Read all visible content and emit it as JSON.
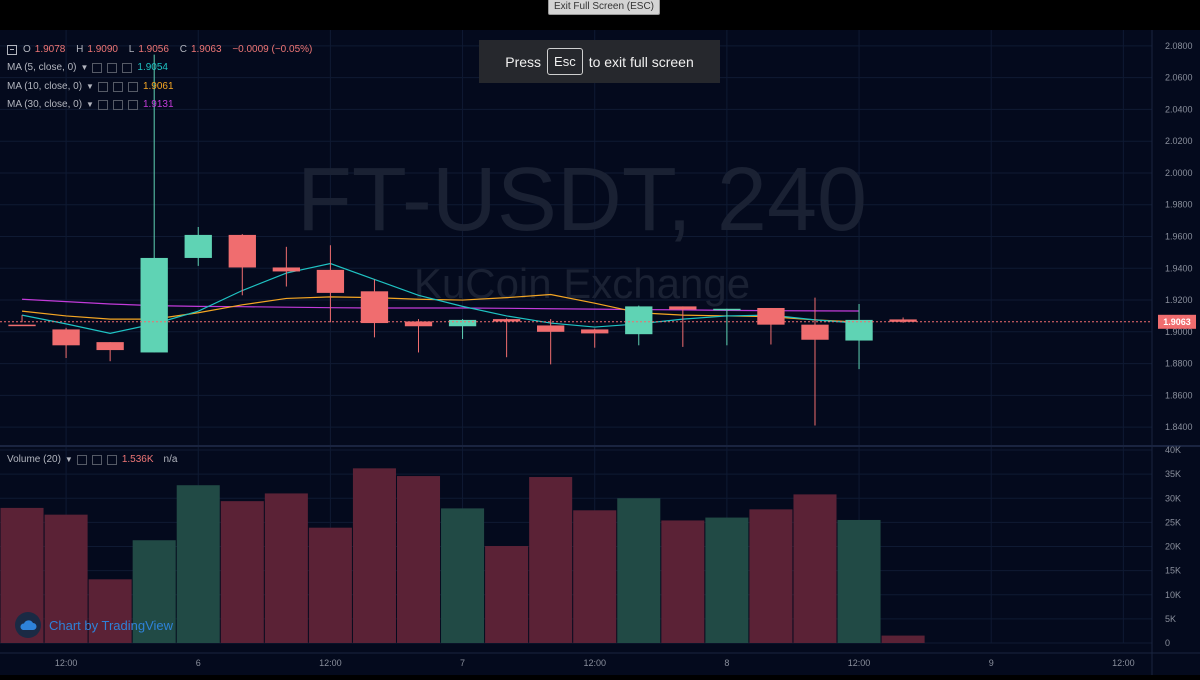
{
  "window": {
    "exit_fullscreen_label": "Exit Full Screen (ESC)"
  },
  "toast": {
    "press": "Press",
    "key": "Esc",
    "rest": "to exit full screen"
  },
  "chart": {
    "watermark_symbol": "FT-USDT, 240",
    "watermark_exchange": "KuCoin Exchange",
    "ohlc": {
      "o_label": "O",
      "o": "1.9078",
      "h_label": "H",
      "h": "1.9090",
      "l_label": "L",
      "l": "1.9056",
      "c_label": "C",
      "c": "1.9063",
      "change": "−0.0009 (−0.05%)"
    },
    "ma": [
      {
        "label": "MA (5, close, 0)",
        "value": "1.9054",
        "color": "#1fc3c3"
      },
      {
        "label": "MA (10, close, 0)",
        "value": "1.9061",
        "color": "#f5a623"
      },
      {
        "label": "MA (30, close, 0)",
        "value": "1.9131",
        "color": "#c23bd9"
      }
    ],
    "volume_label": "Volume (20)",
    "volume_value": "1.536K",
    "volume_ma_value": "n/a",
    "current_price_label": "1.9063",
    "brand": "Chart by TradingView",
    "colors": {
      "bg": "#040a1d",
      "up": "#5fd3b4",
      "down": "#f06d6f",
      "vol_up": "#214a45",
      "vol_down": "#5b2236",
      "grid": "#0f1a33",
      "axis_text": "#8a8f9c"
    }
  },
  "chart_data": {
    "type": "candlestick",
    "title": "FT-USDT, 240",
    "price_axis": {
      "ylim": [
        1.83,
        2.09
      ],
      "ticks": [
        "2.0800",
        "2.0600",
        "2.0400",
        "2.0200",
        "2.0000",
        "1.9800",
        "1.9600",
        "1.9400",
        "1.9200",
        "1.9000",
        "1.8800",
        "1.8600",
        "1.8400"
      ]
    },
    "volume_axis": {
      "ylim": [
        0,
        40000
      ],
      "ticks": [
        "40K",
        "35K",
        "30K",
        "25K",
        "20K",
        "15K",
        "10K",
        "5K",
        "0"
      ],
      "tick_values": [
        40000,
        35000,
        30000,
        25000,
        20000,
        15000,
        10000,
        5000,
        0
      ]
    },
    "time_axis": {
      "labels": [
        {
          "text": "12:00",
          "at": 1.5
        },
        {
          "text": "6",
          "at": 4.5
        },
        {
          "text": "12:00",
          "at": 7.5
        },
        {
          "text": "7",
          "at": 10.5
        },
        {
          "text": "12:00",
          "at": 13.5
        },
        {
          "text": "8",
          "at": 16.5
        },
        {
          "text": "12:00",
          "at": 19.5
        },
        {
          "text": "9",
          "at": 22.5
        },
        {
          "text": "12:00",
          "at": 25.5
        }
      ]
    },
    "visible_bars": 26.15,
    "candles": [
      {
        "o": 1.9045,
        "h": 1.9105,
        "l": 1.906,
        "c": 1.9045,
        "dir": "down",
        "vol": 28000
      },
      {
        "o": 1.9015,
        "h": 1.9025,
        "l": 1.8835,
        "c": 1.8915,
        "dir": "down",
        "vol": 26600
      },
      {
        "o": 1.8935,
        "h": 1.8935,
        "l": 1.8815,
        "c": 1.8885,
        "dir": "down",
        "vol": 13200
      },
      {
        "o": 1.887,
        "h": 2.0745,
        "l": 1.887,
        "c": 1.9465,
        "dir": "up",
        "vol": 21300
      },
      {
        "o": 1.9465,
        "h": 1.966,
        "l": 1.9415,
        "c": 1.961,
        "dir": "up",
        "vol": 32700
      },
      {
        "o": 1.961,
        "h": 1.9615,
        "l": 1.923,
        "c": 1.9405,
        "dir": "down",
        "vol": 29400
      },
      {
        "o": 1.9405,
        "h": 1.9535,
        "l": 1.9285,
        "c": 1.938,
        "dir": "down",
        "vol": 31000
      },
      {
        "o": 1.939,
        "h": 1.9545,
        "l": 1.906,
        "c": 1.9245,
        "dir": "down",
        "vol": 23900
      },
      {
        "o": 1.9255,
        "h": 1.933,
        "l": 1.8965,
        "c": 1.9055,
        "dir": "down",
        "vol": 36200
      },
      {
        "o": 1.9065,
        "h": 1.908,
        "l": 1.887,
        "c": 1.9035,
        "dir": "down",
        "vol": 34600
      },
      {
        "o": 1.9035,
        "h": 1.908,
        "l": 1.8955,
        "c": 1.9075,
        "dir": "up",
        "vol": 27900
      },
      {
        "o": 1.908,
        "h": 1.9085,
        "l": 1.884,
        "c": 1.9065,
        "dir": "down",
        "vol": 20100
      },
      {
        "o": 1.904,
        "h": 1.908,
        "l": 1.8795,
        "c": 1.9,
        "dir": "down",
        "vol": 34400
      },
      {
        "o": 1.9015,
        "h": 1.902,
        "l": 1.89,
        "c": 1.899,
        "dir": "down",
        "vol": 27500
      },
      {
        "o": 1.8985,
        "h": 1.9165,
        "l": 1.8915,
        "c": 1.916,
        "dir": "up",
        "vol": 30000
      },
      {
        "o": 1.916,
        "h": 1.916,
        "l": 1.8905,
        "c": 1.914,
        "dir": "down",
        "vol": 25400
      },
      {
        "o": 1.914,
        "h": 1.9145,
        "l": 1.8915,
        "c": 1.9145,
        "dir": "up",
        "vol": 26000
      },
      {
        "o": 1.915,
        "h": 1.915,
        "l": 1.892,
        "c": 1.9045,
        "dir": "down",
        "vol": 27700
      },
      {
        "o": 1.9045,
        "h": 1.9215,
        "l": 1.841,
        "c": 1.895,
        "dir": "down",
        "vol": 30800
      },
      {
        "o": 1.8945,
        "h": 1.9175,
        "l": 1.8765,
        "c": 1.9075,
        "dir": "up",
        "vol": 25500
      },
      {
        "o": 1.9078,
        "h": 1.909,
        "l": 1.9056,
        "c": 1.9063,
        "dir": "down",
        "vol": 1536
      }
    ],
    "ma5": [
      1.9105,
      1.905,
      1.899,
      1.905,
      1.913,
      1.926,
      1.937,
      1.943,
      1.933,
      1.923,
      1.916,
      1.91,
      1.9055,
      1.903,
      1.905,
      1.908,
      1.91,
      1.9105,
      1.9075,
      1.9054
    ],
    "ma10": [
      1.913,
      1.91,
      1.908,
      1.908,
      1.912,
      1.917,
      1.921,
      1.922,
      1.9215,
      1.9205,
      1.92,
      1.9215,
      1.9235,
      1.918,
      1.912,
      1.9105,
      1.91,
      1.9095,
      1.9075,
      1.9061
    ],
    "ma30": [
      1.9205,
      1.919,
      1.9175,
      1.9165,
      1.916,
      1.9158,
      1.9155,
      1.9152,
      1.915,
      1.915,
      1.915,
      1.9148,
      1.9145,
      1.9143,
      1.914,
      1.9138,
      1.9135,
      1.9133,
      1.9132,
      1.9131
    ]
  }
}
